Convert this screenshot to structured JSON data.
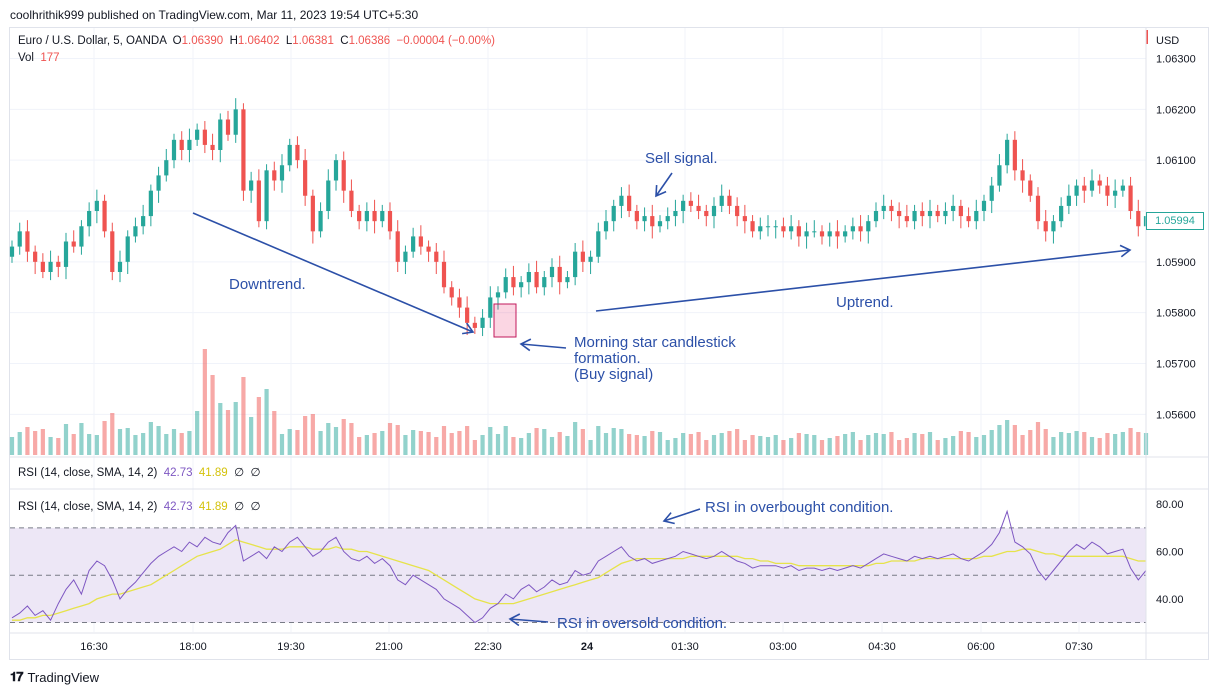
{
  "header": {
    "published": "coolhrithik999 published on TradingView.com, Mar 11, 2023 19:54 UTC+5:30"
  },
  "legend": {
    "symbol": "Euro / U.S. Dollar, 5, OANDA",
    "o_label": "O",
    "o": "1.06390",
    "h_label": "H",
    "h": "1.06402",
    "l_label": "L",
    "l": "1.06381",
    "c_label": "C",
    "c": "1.06386",
    "change": "−0.00004 (−0.00%)",
    "vol_label": "Vol",
    "vol": "177"
  },
  "rsi_legend": {
    "label": "RSI (14, close, SMA, 14, 2)",
    "rsi": "42.73",
    "ma": "41.89",
    "z1": "∅",
    "z2": "∅"
  },
  "price_axis": {
    "currency": "USD",
    "ticks": [
      "1.06300",
      "1.06200",
      "1.06100",
      "1.05900",
      "1.05800",
      "1.05700",
      "1.05600"
    ],
    "last_price": "1.05994"
  },
  "rsi_axis": {
    "ticks": [
      "80.00",
      "60.00",
      "40.00"
    ]
  },
  "time_axis": {
    "ticks": [
      "16:30",
      "18:00",
      "19:30",
      "21:00",
      "22:30",
      "24",
      "01:30",
      "03:00",
      "04:30",
      "06:00",
      "07:30"
    ]
  },
  "annotations": {
    "downtrend": "Downtrend.",
    "uptrend": "Uptrend.",
    "sell": "Sell signal.",
    "morning_star_1": "Morning star candlestick",
    "morning_star_2": "formation.",
    "morning_star_3": "(Buy signal)",
    "overbought": "RSI in overbought condition.",
    "oversold": "RSI in oversold condition."
  },
  "footer": {
    "brand": "TradingView",
    "logo": "tradingview-logo"
  },
  "colors": {
    "up": "#26a69a",
    "down": "#ef5350",
    "annotation": "#2c50a8",
    "rsi": "#7e57c2",
    "rsi_ma": "#e6e34a",
    "rsi_band": "#ede7f6"
  },
  "chart_data": [
    {
      "type": "candlestick",
      "title": "Euro / U.S. Dollar, 5, OANDA",
      "ylim": [
        1.0552,
        1.0636
      ],
      "close": [
        1.0593,
        1.0596,
        1.0592,
        1.059,
        1.0588,
        1.059,
        1.0589,
        1.0594,
        1.0593,
        1.0597,
        1.06,
        1.0602,
        1.0596,
        1.0588,
        1.059,
        1.0595,
        1.0597,
        1.0599,
        1.0604,
        1.0607,
        1.061,
        1.0614,
        1.0612,
        1.0614,
        1.0616,
        1.0613,
        1.0612,
        1.0618,
        1.0615,
        1.062,
        1.0604,
        1.0606,
        1.0598,
        1.0608,
        1.0606,
        1.0609,
        1.0613,
        1.061,
        1.0603,
        1.0596,
        1.06,
        1.0606,
        1.061,
        1.0604,
        1.06,
        1.0598,
        1.06,
        1.0598,
        1.06,
        1.0596,
        1.059,
        1.0592,
        1.0595,
        1.0593,
        1.0592,
        1.059,
        1.0585,
        1.0583,
        1.0581,
        1.0578,
        1.0577,
        1.0579,
        1.0583,
        1.0584,
        1.0587,
        1.0585,
        1.0586,
        1.0588,
        1.0585,
        1.0587,
        1.0589,
        1.0586,
        1.0587,
        1.0592,
        1.059,
        1.0591,
        1.0596,
        1.0598,
        1.0601,
        1.0603,
        1.06,
        1.0598,
        1.0599,
        1.0597,
        1.0598,
        1.0599,
        1.06,
        1.0602,
        1.0601,
        1.06,
        1.0599,
        1.0601,
        1.0603,
        1.0601,
        1.0599,
        1.0598,
        1.0596,
        1.0597,
        1.0597,
        1.0597,
        1.0596,
        1.0597,
        1.0595,
        1.0596,
        1.0596,
        1.0595,
        1.0596,
        1.0595,
        1.0596,
        1.0597,
        1.0596,
        1.0598,
        1.06,
        1.0601,
        1.06,
        1.0599,
        1.0598,
        1.06,
        1.0599,
        1.06,
        1.0599,
        1.06,
        1.0601,
        1.0599,
        1.0598,
        1.06,
        1.0602,
        1.0605,
        1.0609,
        1.0614,
        1.0608,
        1.0606,
        1.0603,
        1.0598,
        1.0596,
        1.0598,
        1.0601,
        1.0603,
        1.0605,
        1.0604,
        1.0606,
        1.0605,
        1.0603,
        1.0604,
        1.0605,
        1.06,
        1.0597,
        1.0599
      ]
    },
    {
      "type": "line",
      "ylim": [
        26,
        86
      ],
      "reference_lines": [
        70,
        50,
        30
      ],
      "series": [
        {
          "values": [
            32,
            34,
            37,
            33,
            35,
            31,
            38,
            44,
            48,
            42,
            52,
            56,
            54,
            48,
            40,
            44,
            47,
            51,
            55,
            58,
            60,
            62,
            60,
            64,
            62,
            66,
            64,
            63,
            68,
            71,
            56,
            58,
            60,
            57,
            62,
            60,
            64,
            66,
            62,
            58,
            60,
            64,
            66,
            60,
            57,
            56,
            58,
            55,
            57,
            54,
            48,
            46,
            50,
            48,
            46,
            44,
            40,
            38,
            36,
            33,
            30,
            32,
            36,
            38,
            42,
            40,
            44,
            46,
            43,
            45,
            48,
            46,
            47,
            52,
            50,
            51,
            56,
            58,
            60,
            62,
            58,
            56,
            57,
            55,
            56,
            57,
            58,
            60,
            59,
            58,
            57,
            58,
            60,
            58,
            56,
            55,
            53,
            54,
            54,
            54,
            53,
            54,
            52,
            53,
            53,
            52,
            53,
            52,
            53,
            54,
            53,
            55,
            57,
            59,
            58,
            57,
            56,
            58,
            57,
            58,
            57,
            58,
            59,
            57,
            56,
            58,
            60,
            63,
            68,
            77,
            64,
            62,
            59,
            52,
            48,
            52,
            56,
            60,
            63,
            61,
            64,
            62,
            59,
            60,
            61,
            53,
            48,
            52
          ]
        },
        {
          "values": [
            31,
            31,
            32,
            32,
            33,
            33,
            34,
            35,
            36,
            37,
            38,
            40,
            41,
            42,
            42,
            43,
            44,
            45,
            46,
            48,
            50,
            52,
            54,
            56,
            58,
            59,
            60,
            61,
            63,
            65,
            64,
            63,
            62,
            61,
            61,
            61,
            62,
            62,
            62,
            61,
            61,
            61,
            62,
            61,
            61,
            60,
            60,
            59,
            58,
            57,
            56,
            55,
            54,
            53,
            52,
            50,
            48,
            46,
            44,
            42,
            40,
            39,
            38,
            38,
            38,
            38,
            39,
            40,
            41,
            42,
            43,
            44,
            45,
            46,
            47,
            48,
            49,
            51,
            53,
            55,
            56,
            57,
            57,
            57,
            57,
            57,
            57,
            57,
            58,
            58,
            58,
            58,
            58,
            58,
            58,
            57,
            57,
            56,
            56,
            55,
            55,
            55,
            54,
            54,
            54,
            54,
            54,
            54,
            54,
            54,
            54,
            54,
            55,
            55,
            56,
            56,
            56,
            56,
            57,
            57,
            57,
            57,
            57,
            57,
            57,
            57,
            58,
            58,
            59,
            60,
            60,
            61,
            61,
            60,
            59,
            59,
            58,
            58,
            58,
            58,
            58,
            58,
            58,
            58,
            58,
            57,
            56,
            56
          ]
        }
      ]
    }
  ]
}
